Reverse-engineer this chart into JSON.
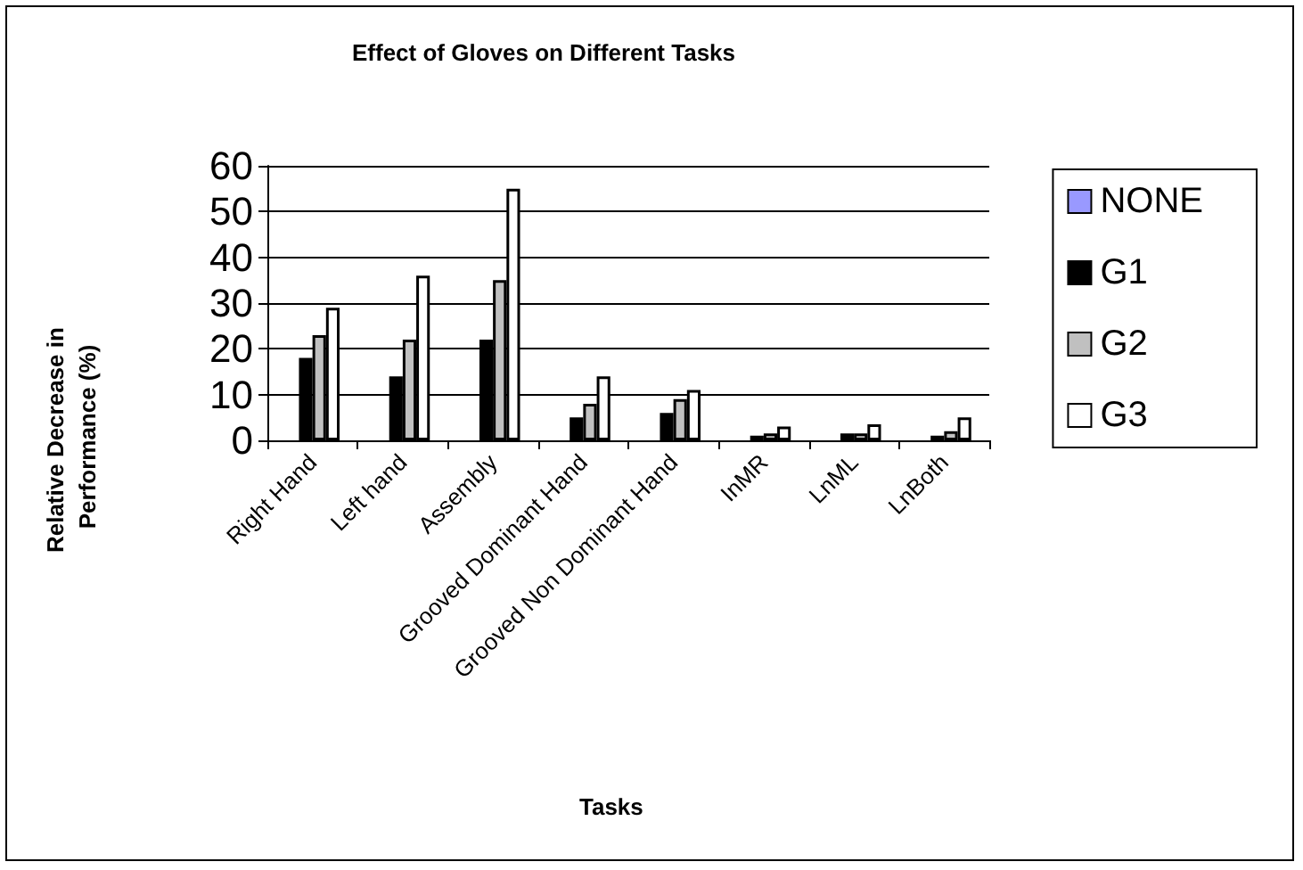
{
  "chart_data": {
    "type": "bar",
    "title": "Effect of Gloves on Different Tasks",
    "xlabel": "Tasks",
    "ylabel": "Relative Decrease in Performance (%)",
    "categories": [
      "Right Hand",
      "Left hand",
      "Assembly",
      "Grooved Dominant Hand",
      "Grooved Non Dominant Hand",
      "InMR",
      "LnML",
      "LnBoth"
    ],
    "series": [
      {
        "name": "NONE",
        "color": "#9999ff",
        "values": [
          0,
          0,
          0,
          0,
          0,
          0,
          0,
          0
        ]
      },
      {
        "name": "G1",
        "color": "#000000",
        "values": [
          18,
          14,
          22,
          5,
          6,
          1,
          1.5,
          1
        ]
      },
      {
        "name": "G2",
        "color": "#c0c0c0",
        "values": [
          23,
          22,
          35,
          8,
          9,
          1.5,
          1.5,
          2
        ]
      },
      {
        "name": "G3",
        "color": "#ffffff",
        "values": [
          29,
          36,
          55,
          14,
          11,
          3,
          3.5,
          5
        ]
      }
    ],
    "ylim": [
      0,
      60
    ],
    "yticks": [
      0,
      10,
      20,
      30,
      40,
      50,
      60
    ],
    "grid": "y",
    "legend": "right"
  }
}
